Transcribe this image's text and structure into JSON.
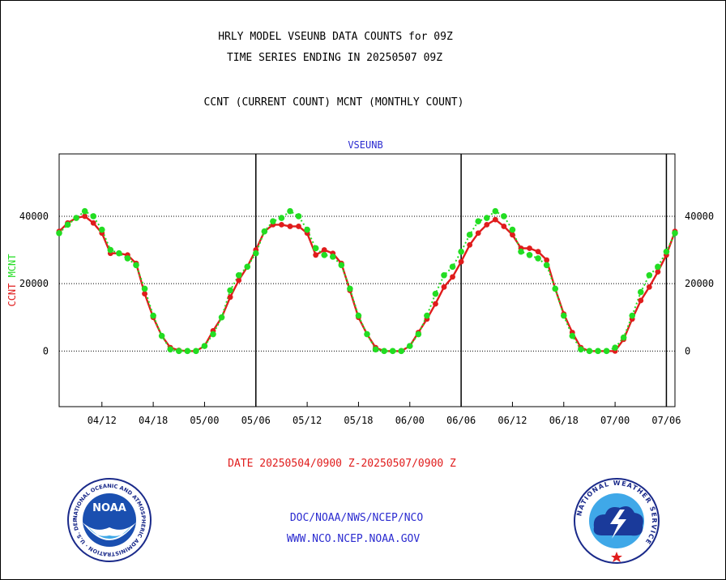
{
  "header": {
    "title_line1": "HRLY MODEL VSEUNB DATA COUNTS for 09Z",
    "title_line2": "TIME SERIES ENDING IN 20250507 09Z",
    "subtitle": "CCNT (CURRENT COUNT) MCNT (MONTHLY COUNT)"
  },
  "footer": {
    "date_range": "DATE 20250504/0900 Z-20250507/0900 Z",
    "org": "DOC/NOAA/NWS/NCEP/NCO",
    "url": "WWW.NCO.NCEP.NOAA.GOV"
  },
  "logos": {
    "noaa_text": "NOAA",
    "noaa_ring_text": "NATIONAL OCEANIC AND ATMOSPHERIC ADMINISTRATION · U.S. DEPARTMENT OF COMMERCE",
    "nws_ring_text": "NATIONAL WEATHER SERVICE"
  },
  "colors": {
    "ccnt": "#e01c1c",
    "mcnt": "#22dd22",
    "plot_title": "#2b2bd0",
    "axis": "#000000"
  },
  "chart_data": {
    "type": "line",
    "plot_title": "VSEUNB",
    "ylabel_parts": [
      "CCNT",
      "MCNT"
    ],
    "x_ticks": [
      "04/12",
      "04/18",
      "05/00",
      "05/06",
      "05/12",
      "05/18",
      "06/00",
      "06/06",
      "06/12",
      "06/18",
      "07/00",
      "07/06"
    ],
    "y_ticks": [
      0,
      20000,
      40000
    ],
    "ylim": [
      -16500,
      58500
    ],
    "x_range_hours": [
      7,
      79
    ],
    "day_boundaries_hours": [
      30,
      54,
      78
    ],
    "grid": "horizontal dotted at 0, 20000, 40000",
    "series": [
      {
        "name": "CCNT",
        "x_hours": [
          7,
          8,
          9,
          10,
          11,
          12,
          13,
          14,
          15,
          16,
          17,
          18,
          19,
          20,
          21,
          22,
          23,
          24,
          25,
          26,
          27,
          28,
          29,
          30,
          31,
          32,
          33,
          34,
          35,
          36,
          37,
          38,
          39,
          40,
          41,
          42,
          43,
          44,
          45,
          46,
          47,
          48,
          49,
          50,
          51,
          52,
          53,
          54,
          55,
          56,
          57,
          58,
          59,
          60,
          61,
          62,
          63,
          64,
          65,
          66,
          67,
          68,
          69,
          70,
          71,
          72,
          73,
          74,
          75,
          76,
          77,
          78,
          79
        ],
        "values": [
          35500,
          38000,
          39500,
          40000,
          38000,
          35000,
          29000,
          29000,
          28500,
          26000,
          17000,
          10000,
          4500,
          1000,
          200,
          0,
          0,
          1500,
          6000,
          10000,
          16000,
          21000,
          25000,
          30000,
          35500,
          37500,
          37500,
          37000,
          37000,
          35000,
          28500,
          30000,
          29000,
          26000,
          18000,
          10000,
          5000,
          1000,
          0,
          0,
          0,
          1500,
          5500,
          9500,
          14000,
          19000,
          22000,
          26500,
          31500,
          35000,
          37500,
          39000,
          37000,
          34500,
          30500,
          30500,
          29500,
          27000,
          18500,
          11000,
          5500,
          1000,
          0,
          0,
          0,
          0,
          3500,
          9500,
          15000,
          19000,
          23500,
          28500,
          35500
        ]
      },
      {
        "name": "MCNT",
        "x_hours": [
          7,
          8,
          9,
          10,
          11,
          12,
          13,
          14,
          15,
          16,
          17,
          18,
          19,
          20,
          21,
          22,
          23,
          24,
          25,
          26,
          27,
          28,
          29,
          30,
          31,
          32,
          33,
          34,
          35,
          36,
          37,
          38,
          39,
          40,
          41,
          42,
          43,
          44,
          45,
          46,
          47,
          48,
          49,
          50,
          51,
          52,
          53,
          54,
          55,
          56,
          57,
          58,
          59,
          60,
          61,
          62,
          63,
          64,
          65,
          66,
          67,
          68,
          69,
          70,
          71,
          72,
          73,
          74,
          75,
          76,
          77,
          78,
          79
        ],
        "values": [
          35000,
          37500,
          39500,
          41500,
          40000,
          36000,
          30000,
          29000,
          27500,
          25500,
          18500,
          10500,
          4500,
          500,
          0,
          0,
          0,
          1500,
          5000,
          10000,
          18000,
          22500,
          25000,
          29000,
          35500,
          38500,
          39500,
          41500,
          40000,
          36000,
          30500,
          28500,
          28000,
          25500,
          18500,
          10500,
          5000,
          500,
          0,
          0,
          0,
          1500,
          5000,
          10500,
          17000,
          22500,
          25000,
          29500,
          34500,
          38500,
          39500,
          41500,
          40000,
          36000,
          29500,
          28500,
          27500,
          25500,
          18500,
          10500,
          4500,
          500,
          0,
          0,
          0,
          1000,
          4000,
          10500,
          17500,
          22500,
          25000,
          29500,
          35000
        ]
      }
    ]
  }
}
